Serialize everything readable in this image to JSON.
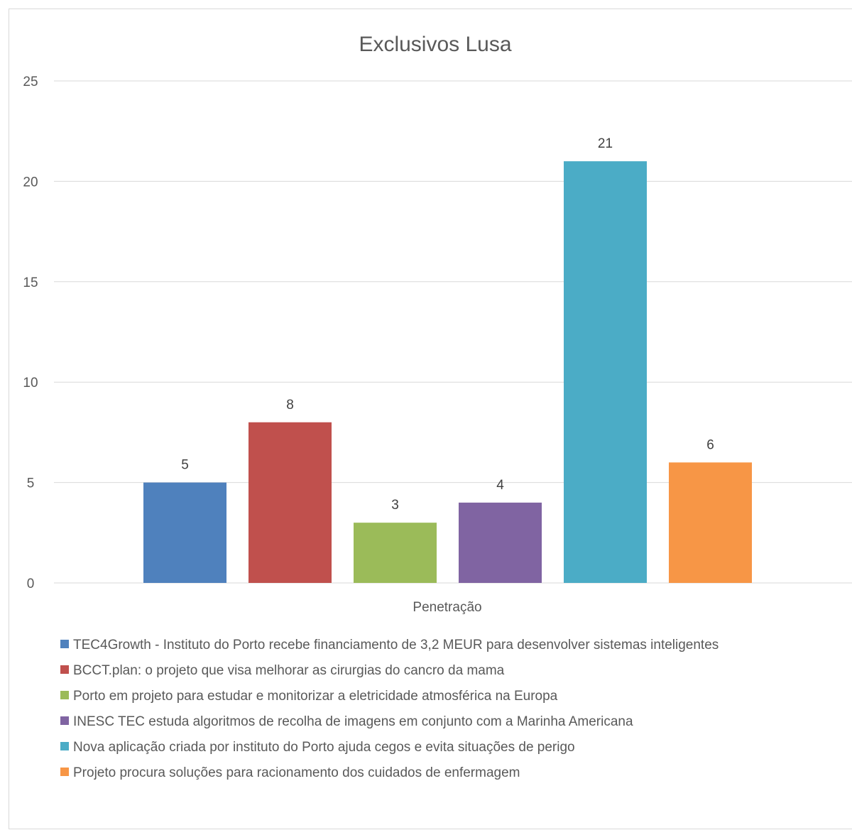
{
  "chart_data": {
    "type": "bar",
    "title": "Exclusivos Lusa",
    "categories": [
      "Penetração"
    ],
    "ylim": [
      0,
      25
    ],
    "yticks": [
      0,
      5,
      10,
      15,
      20,
      25
    ],
    "grid": true,
    "legend_position": "bottom",
    "series": [
      {
        "name": "TEC4Growth - Instituto do Porto recebe financiamento de 3,2 MEUR para desenvolver sistemas inteligentes",
        "values": [
          5
        ],
        "color": "#4f81bd"
      },
      {
        "name": "BCCT.plan: o projeto que visa melhorar as cirurgias do cancro da mama",
        "values": [
          8
        ],
        "color": "#c0504d"
      },
      {
        "name": "Porto em projeto para estudar e monitorizar a eletricidade atmosférica na Europa",
        "values": [
          3
        ],
        "color": "#9bbb59"
      },
      {
        "name": "INESC TEC estuda algoritmos de recolha de imagens em conjunto com a Marinha Americana",
        "values": [
          4
        ],
        "color": "#8064a2"
      },
      {
        "name": "Nova aplicação criada por instituto do Porto ajuda cegos e evita situações de perigo",
        "values": [
          21
        ],
        "color": "#4bacc6"
      },
      {
        "name": "Projeto procura soluções para racionamento dos cuidados de enfermagem",
        "values": [
          6
        ],
        "color": "#f79646"
      }
    ]
  }
}
